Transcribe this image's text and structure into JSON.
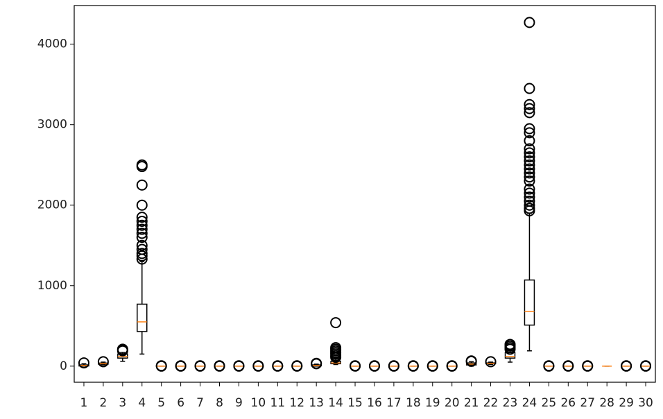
{
  "chart_data": {
    "type": "box",
    "categories": [
      "1",
      "2",
      "3",
      "4",
      "5",
      "6",
      "7",
      "8",
      "9",
      "10",
      "11",
      "12",
      "13",
      "14",
      "15",
      "16",
      "17",
      "18",
      "19",
      "20",
      "21",
      "22",
      "23",
      "24",
      "25",
      "26",
      "27",
      "28",
      "29",
      "30"
    ],
    "boxes": [
      {
        "whislo": 0,
        "q1": 2,
        "med": 8,
        "q3": 15,
        "whishi": 30,
        "fliers": [
          40
        ]
      },
      {
        "whislo": 15,
        "q1": 25,
        "med": 30,
        "q3": 38,
        "whishi": 50,
        "fliers": [
          55
        ]
      },
      {
        "whislo": 60,
        "q1": 100,
        "med": 120,
        "q3": 150,
        "whishi": 170,
        "fliers": [
          190,
          200,
          210
        ]
      },
      {
        "whislo": 150,
        "q1": 430,
        "med": 550,
        "q3": 770,
        "whishi": 1300,
        "fliers": [
          1330,
          1370,
          1400,
          1450,
          1500,
          1600,
          1650,
          1700,
          1750,
          1800,
          1850,
          2000,
          2250,
          2480,
          2500
        ]
      },
      {
        "whislo": 0,
        "q1": 0,
        "med": 0,
        "q3": 0,
        "whishi": 0,
        "fliers": [
          0,
          5
        ]
      },
      {
        "whislo": 0,
        "q1": 0,
        "med": 0,
        "q3": 0,
        "whishi": 0,
        "fliers": [
          0,
          5
        ]
      },
      {
        "whislo": 0,
        "q1": 0,
        "med": 0,
        "q3": 0,
        "whishi": 0,
        "fliers": [
          0,
          5
        ]
      },
      {
        "whislo": 0,
        "q1": 0,
        "med": 0,
        "q3": 0,
        "whishi": 0,
        "fliers": [
          0,
          5
        ]
      },
      {
        "whislo": 0,
        "q1": 0,
        "med": 0,
        "q3": 0,
        "whishi": 0,
        "fliers": [
          0,
          5
        ]
      },
      {
        "whislo": 0,
        "q1": 0,
        "med": 0,
        "q3": 0,
        "whishi": 0,
        "fliers": [
          0,
          5
        ]
      },
      {
        "whislo": 0,
        "q1": 0,
        "med": 0,
        "q3": 0,
        "whishi": 0,
        "fliers": [
          0,
          5
        ]
      },
      {
        "whislo": 0,
        "q1": 0,
        "med": 0,
        "q3": 0,
        "whishi": 0,
        "fliers": [
          0,
          5
        ]
      },
      {
        "whislo": 0,
        "q1": 3,
        "med": 8,
        "q3": 15,
        "whishi": 25,
        "fliers": [
          30,
          35
        ]
      },
      {
        "whislo": 20,
        "q1": 30,
        "med": 40,
        "q3": 60,
        "whishi": 100,
        "fliers": [
          110,
          130,
          150,
          170,
          190,
          210,
          230,
          540
        ]
      },
      {
        "whislo": 0,
        "q1": 0,
        "med": 0,
        "q3": 0,
        "whishi": 0,
        "fliers": [
          0,
          5
        ]
      },
      {
        "whislo": 0,
        "q1": 0,
        "med": 0,
        "q3": 0,
        "whishi": 0,
        "fliers": [
          0,
          5
        ]
      },
      {
        "whislo": 0,
        "q1": 0,
        "med": 0,
        "q3": 0,
        "whishi": 0,
        "fliers": [
          0,
          5
        ]
      },
      {
        "whislo": 0,
        "q1": 0,
        "med": 0,
        "q3": 0,
        "whishi": 0,
        "fliers": [
          0,
          5
        ]
      },
      {
        "whislo": 0,
        "q1": 0,
        "med": 0,
        "q3": 0,
        "whishi": 0,
        "fliers": [
          0,
          5
        ]
      },
      {
        "whislo": 0,
        "q1": 0,
        "med": 0,
        "q3": 0,
        "whishi": 0,
        "fliers": [
          0,
          5
        ]
      },
      {
        "whislo": 0,
        "q1": 15,
        "med": 25,
        "q3": 40,
        "whishi": 55,
        "fliers": [
          60,
          65
        ]
      },
      {
        "whislo": 20,
        "q1": 30,
        "med": 35,
        "q3": 40,
        "whishi": 50,
        "fliers": [
          55
        ]
      },
      {
        "whislo": 50,
        "q1": 100,
        "med": 120,
        "q3": 170,
        "whishi": 200,
        "fliers": [
          210,
          230,
          250,
          270
        ]
      },
      {
        "whislo": 190,
        "q1": 510,
        "med": 680,
        "q3": 1070,
        "whishi": 1900,
        "fliers": [
          1930,
          1960,
          2000,
          2050,
          2100,
          2150,
          2200,
          2300,
          2350,
          2400,
          2450,
          2500,
          2550,
          2600,
          2650,
          2700,
          2800,
          2900,
          2950,
          3150,
          3200,
          3250,
          3450,
          4270
        ]
      },
      {
        "whislo": 0,
        "q1": 0,
        "med": 0,
        "q3": 0,
        "whishi": 0,
        "fliers": [
          0,
          5
        ]
      },
      {
        "whislo": 0,
        "q1": 0,
        "med": 0,
        "q3": 0,
        "whishi": 0,
        "fliers": [
          0,
          5
        ]
      },
      {
        "whislo": 0,
        "q1": 0,
        "med": 0,
        "q3": 0,
        "whishi": 0,
        "fliers": [
          0,
          5
        ]
      },
      {
        "whislo": 0,
        "q1": 0,
        "med": 0,
        "q3": 0,
        "whishi": 0,
        "fliers": []
      },
      {
        "whislo": 0,
        "q1": 0,
        "med": 0,
        "q3": 0,
        "whishi": 0,
        "fliers": [
          0,
          5
        ]
      },
      {
        "whislo": 0,
        "q1": 0,
        "med": 0,
        "q3": 0,
        "whishi": 0,
        "fliers": [
          0,
          5
        ]
      }
    ],
    "box_color": "#000000",
    "median_color": "#ff7f0e",
    "ylim": [
      -200,
      4480
    ],
    "yticks": [
      0,
      1000,
      2000,
      3000,
      4000
    ]
  }
}
